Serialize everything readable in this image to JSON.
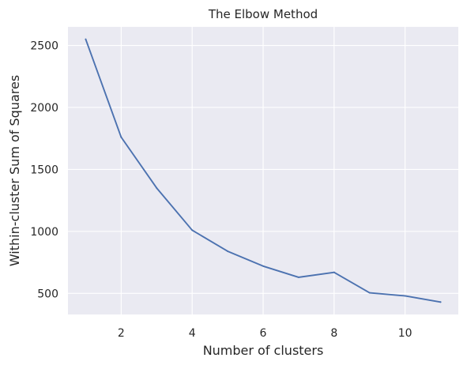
{
  "chart_data": {
    "type": "line",
    "title": "The Elbow Method",
    "xlabel": "Number of clusters",
    "ylabel": "Within-cluster Sum of Squares",
    "x": [
      1,
      2,
      3,
      4,
      5,
      6,
      7,
      8,
      9,
      10,
      11
    ],
    "series": [
      {
        "values": [
          2550,
          1760,
          1350,
          1010,
          840,
          720,
          630,
          670,
          505,
          480,
          430
        ]
      }
    ],
    "xticks": [
      2,
      4,
      6,
      8,
      10
    ],
    "yticks": [
      500,
      1000,
      1500,
      2000,
      2500
    ],
    "xlim": [
      0.5,
      11.5
    ],
    "ylim": [
      330,
      2650
    ],
    "grid": true,
    "colors": {
      "plot_background": "#eaeaf2",
      "grid": "#ffffff",
      "line": "#4c72b0",
      "text": "#262626"
    }
  }
}
